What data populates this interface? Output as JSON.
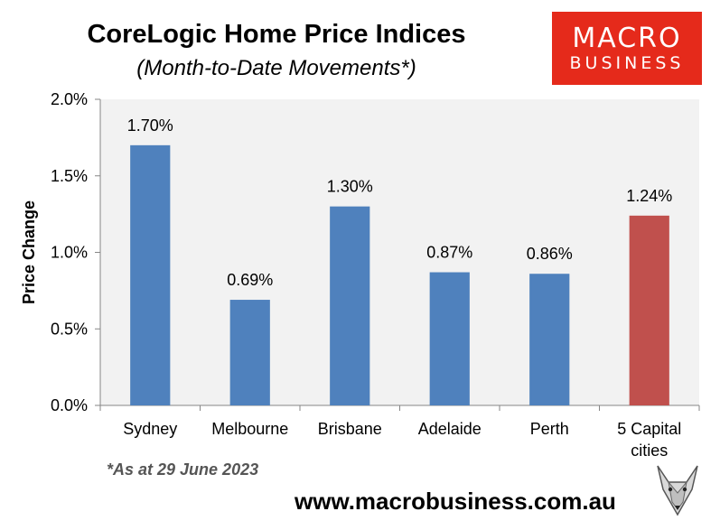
{
  "title": "CoreLogic Home Price Indices",
  "subtitle": "(Month-to-Date Movements*)",
  "logo": {
    "line1": "MACRO",
    "line2": "BUSINESS"
  },
  "footnote": "*As at 29 June 2023",
  "website": "www.macrobusiness.com.au",
  "colors": {
    "bar": "#4f81bd",
    "highlight": "#c0504d",
    "plot_bg": "#f2f2f2",
    "logo_bg": "#e52a1b"
  },
  "chart_data": {
    "type": "bar",
    "categories": [
      "Sydney",
      "Melbourne",
      "Brisbane",
      "Adelaide",
      "Perth",
      "5 Capital cities"
    ],
    "values": [
      1.7,
      0.69,
      1.3,
      0.87,
      0.86,
      1.24
    ],
    "data_labels": [
      "1.70%",
      "0.69%",
      "1.30%",
      "0.87%",
      "0.86%",
      "1.24%"
    ],
    "highlight_index": 5,
    "ylabel": "Price Change",
    "xlabel": "",
    "ylim": [
      0,
      2.0
    ],
    "yticks": [
      0.0,
      0.5,
      1.0,
      1.5,
      2.0
    ],
    "ytick_labels": [
      "0.0%",
      "0.5%",
      "1.0%",
      "1.5%",
      "2.0%"
    ],
    "grid": false,
    "legend": "none"
  }
}
